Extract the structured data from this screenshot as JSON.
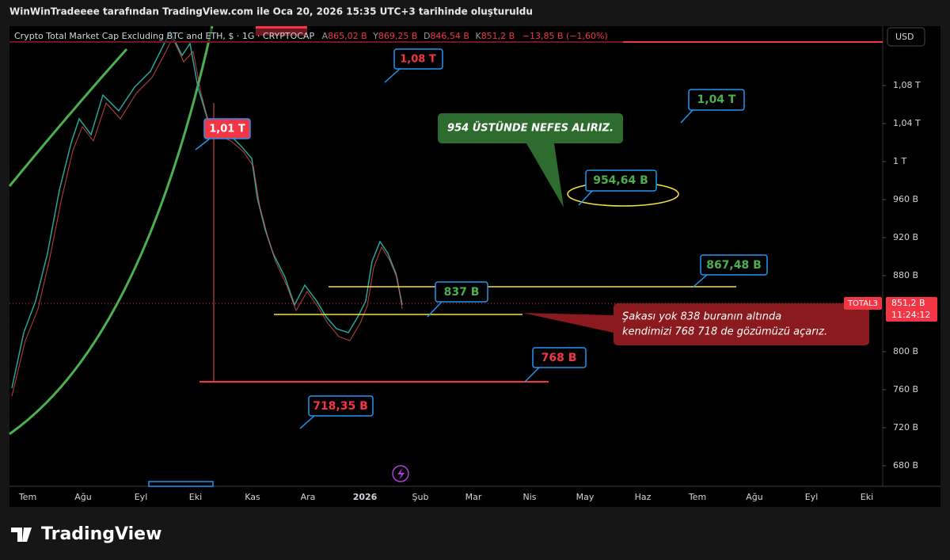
{
  "header": {
    "text": "WinWinTradeeee tarafından TradingView.com ile Oca 20, 2026 15:35 UTC+3 tarihinde oluşturuldu"
  },
  "legend": {
    "symbol": "Crypto Total Market Cap Excluding BTC and ETH, $ · 1G · CRYPTOCAP",
    "open_label": "A",
    "open": "865,02 B",
    "high_label": "Y",
    "high": "869,25 B",
    "low_label": "D",
    "low": "846,54 B",
    "close_label": "K",
    "close": "851,2 B",
    "change": "−13,85 B (−1,60%)"
  },
  "currency_button": "USD",
  "price_axis": {
    "ticks": [
      {
        "value": 1080,
        "label": "1,08 T"
      },
      {
        "value": 1040,
        "label": "1,04 T"
      },
      {
        "value": 1000,
        "label": "1 T"
      },
      {
        "value": 960,
        "label": "960 B"
      },
      {
        "value": 920,
        "label": "920 B"
      },
      {
        "value": 880,
        "label": "880 B"
      },
      {
        "value": 800,
        "label": "800 B"
      },
      {
        "value": 760,
        "label": "760 B"
      },
      {
        "value": 720,
        "label": "720 B"
      },
      {
        "value": 680,
        "label": "680 B"
      }
    ],
    "last_price": {
      "value": 851.2,
      "label": "851,2 B",
      "countdown": "11:24:12",
      "symbol": "TOTAL3"
    }
  },
  "time_axis": [
    "Tem",
    "Ağu",
    "Eyl",
    "Eki",
    "Kas",
    "Ara",
    "2026",
    "Şub",
    "Mar",
    "Nis",
    "May",
    "Haz",
    "Tem",
    "Ağu",
    "Eyl",
    "Eki"
  ],
  "annotations": {
    "note_green": "954 ÜSTÜNDE NEFES ALIRIZ.",
    "note_red_line1": "Şakası yok 838 buranın altında",
    "note_red_line2": "kendimizi 768 718 de gözümüzü açarız.",
    "label_108": "1,08 T",
    "label_104": "1,04 T",
    "label_101": "1,01 T",
    "label_954": "954,64 B",
    "label_867": "867,48 B",
    "label_837": "837 B",
    "label_768": "768 B",
    "label_718": "718,35 B"
  },
  "footer": {
    "brand": "TradingView"
  }
}
